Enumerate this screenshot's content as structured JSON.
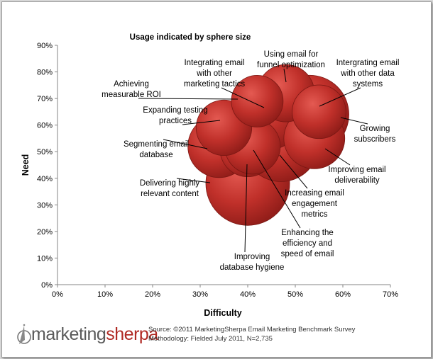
{
  "chart_data": {
    "type": "bubble",
    "title": "Usage indicated by sphere size",
    "xlabel": "Difficulty",
    "ylabel": "Need",
    "xlim": [
      0,
      70
    ],
    "ylim": [
      0,
      90
    ],
    "x_ticks": [
      "0%",
      "10%",
      "20%",
      "30%",
      "40%",
      "50%",
      "60%",
      "70%"
    ],
    "y_ticks": [
      "0%",
      "10%",
      "20%",
      "30%",
      "40%",
      "50%",
      "60%",
      "70%",
      "80%",
      "90%"
    ],
    "grid": false,
    "bubble_color": "#c0302a",
    "points": [
      {
        "label": "Increasing email engagement metrics",
        "x": 47,
        "y": 53,
        "size": 28
      },
      {
        "label": "Intergrating email with other data systems",
        "x": 53,
        "y": 64,
        "size": 30
      },
      {
        "label": "Delivering highly relevant content",
        "x": 40,
        "y": 38,
        "size": 34
      },
      {
        "label": "Integrating email with other marketing tactics",
        "x": 44,
        "y": 64,
        "size": 25
      },
      {
        "label": "Improving email deliverability",
        "x": 54,
        "y": 55,
        "size": 18
      },
      {
        "label": "Segmenting email database",
        "x": 34,
        "y": 52,
        "size": 19
      },
      {
        "label": "Improving database hygiene",
        "x": 40,
        "y": 51,
        "size": 15
      },
      {
        "label": "Enhancing the efficiency and speed of email",
        "x": 41,
        "y": 52,
        "size": 15
      },
      {
        "label": "Using email for funnel optimization",
        "x": 48,
        "y": 72,
        "size": 16
      },
      {
        "label": "Growing subscribers",
        "x": 55,
        "y": 65,
        "size": 14
      },
      {
        "label": "Expanding testing practices",
        "x": 35,
        "y": 59,
        "size": 15
      },
      {
        "label": "Achieving measurable ROI",
        "x": 42,
        "y": 69,
        "size": 13
      }
    ],
    "annotations": [
      {
        "lines": [
          "Integrating email",
          "with other",
          "marketing tactics"
        ]
      },
      {
        "lines": [
          "Using email for",
          "funnel optimization"
        ]
      },
      {
        "lines": [
          "Intergrating email",
          "with other data",
          "systems"
        ]
      },
      {
        "lines": [
          "Achieving",
          "measurable ROI"
        ]
      },
      {
        "lines": [
          "Expanding testing",
          "practices"
        ]
      },
      {
        "lines": [
          "Growing",
          "subscribers"
        ]
      },
      {
        "lines": [
          "Segmenting email",
          "database"
        ]
      },
      {
        "lines": [
          "Improving email",
          "deliverability"
        ]
      },
      {
        "lines": [
          "Delivering highly",
          "relevant content"
        ]
      },
      {
        "lines": [
          "Increasing email",
          "engagement",
          "metrics"
        ]
      },
      {
        "lines": [
          "Enhancing the",
          "efficiency and",
          "speed of email"
        ]
      },
      {
        "lines": [
          "Improving",
          "database hygiene"
        ]
      }
    ]
  },
  "branding": {
    "logo_part1": "marketing",
    "logo_part2": "sherpa",
    "logo_accent": "#b02a24"
  },
  "source": {
    "line1": "Source: ©2011 MarketingSherpa Email Marketing Benchmark Survey",
    "line2": "Methodology:  Fielded July 2011, N=2,735"
  }
}
